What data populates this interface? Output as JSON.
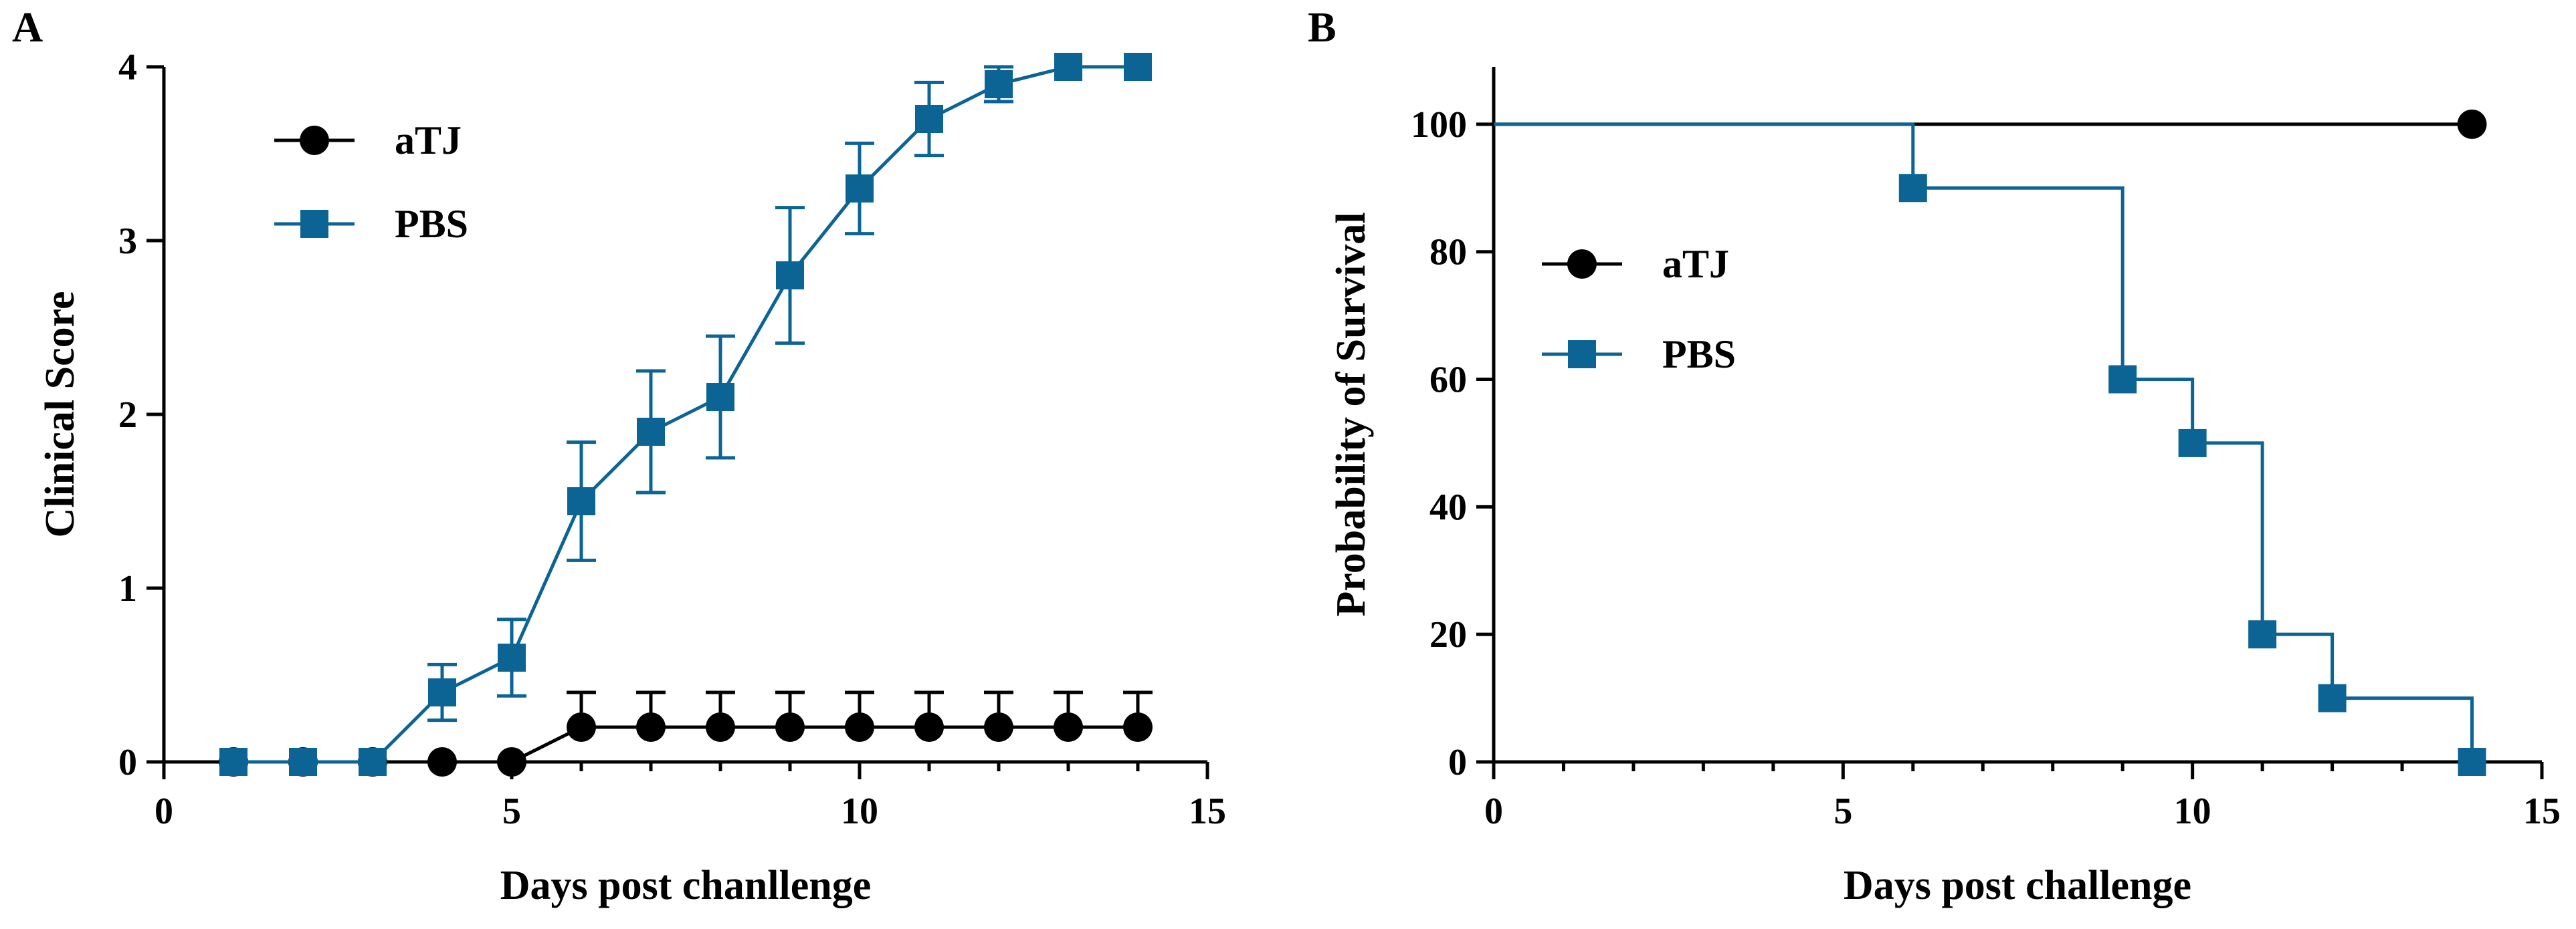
{
  "panels": {
    "a": "A",
    "b": "B"
  },
  "colors": {
    "aTJ": "#000000",
    "PBS": "#0b6494"
  },
  "chart_data": [
    {
      "type": "line",
      "panel": "A",
      "title": "",
      "xlabel": "Days post chanllenge",
      "ylabel": "Clinical Score",
      "xlim": [
        0,
        15
      ],
      "ylim": [
        0,
        4
      ],
      "xticks": [
        0,
        5,
        10,
        15
      ],
      "yticks": [
        0,
        1,
        2,
        3,
        4
      ],
      "legend_position": "top-left",
      "grid": false,
      "series": [
        {
          "name": "aTJ",
          "marker": "circle",
          "x": [
            1,
            2,
            3,
            4,
            5,
            6,
            7,
            8,
            9,
            10,
            11,
            12,
            13,
            14
          ],
          "y": [
            0,
            0,
            0,
            0,
            0,
            0.2,
            0.2,
            0.2,
            0.2,
            0.2,
            0.2,
            0.2,
            0.2,
            0.2
          ],
          "error_upper": [
            0,
            0,
            0,
            0,
            0,
            0.2,
            0.2,
            0.2,
            0.2,
            0.2,
            0.2,
            0.2,
            0.2,
            0.2
          ]
        },
        {
          "name": "PBS",
          "marker": "square",
          "x": [
            1,
            2,
            3,
            4,
            5,
            6,
            7,
            8,
            9,
            10,
            11,
            12,
            13,
            14
          ],
          "y": [
            0,
            0,
            0,
            0.4,
            0.6,
            1.5,
            1.9,
            2.1,
            2.8,
            3.3,
            3.7,
            3.9,
            4.0,
            4.0
          ],
          "error": [
            0,
            0,
            0,
            0.16,
            0.22,
            0.34,
            0.35,
            0.35,
            0.39,
            0.26,
            0.21,
            0.1,
            0,
            0
          ]
        }
      ]
    },
    {
      "type": "step",
      "panel": "B",
      "title": "",
      "xlabel": "Days post challenge",
      "ylabel": "Probability of Survival",
      "xlim": [
        0,
        15
      ],
      "ylim": [
        0,
        100
      ],
      "xticks": [
        0,
        5,
        10,
        15
      ],
      "yticks": [
        0,
        20,
        40,
        60,
        80,
        100
      ],
      "legend_position": "middle-left",
      "grid": false,
      "series": [
        {
          "name": "aTJ",
          "marker": "circle",
          "x": [
            0,
            14
          ],
          "y": [
            100,
            100
          ],
          "marker_x": [
            14
          ],
          "marker_y": [
            100
          ]
        },
        {
          "name": "PBS",
          "marker": "square",
          "x": [
            0,
            6,
            9,
            10,
            11,
            12,
            14
          ],
          "y": [
            100,
            90,
            60,
            50,
            20,
            10,
            0
          ],
          "marker_x": [
            6,
            9,
            10,
            11,
            12,
            14
          ],
          "marker_y": [
            90,
            60,
            50,
            20,
            10,
            0
          ]
        }
      ]
    }
  ]
}
